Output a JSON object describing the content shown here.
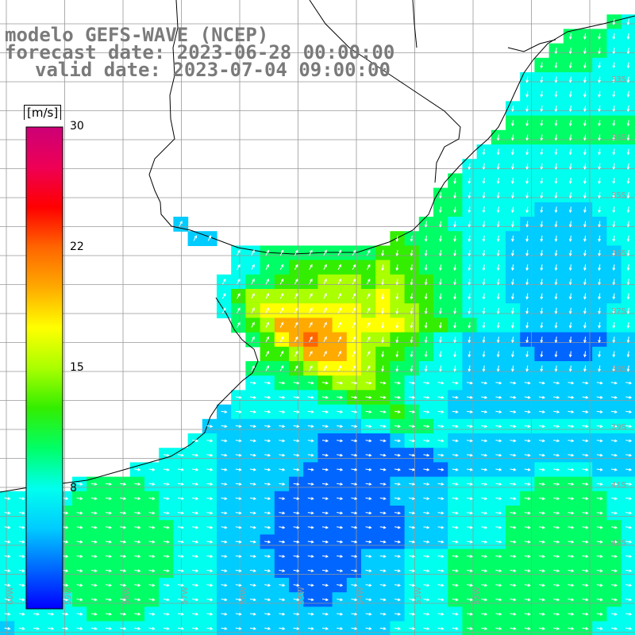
{
  "header": {
    "line1": "modelo GEFS-WAVE (NCEP)",
    "line2": "forecast date: 2023-06-28 00:00:00",
    "line3": "valid date: 2023-07-04 09:00:00"
  },
  "colorbar": {
    "unit_label": "[m/s]",
    "min": 0,
    "max": 30,
    "tick_labels": [
      "30",
      "22",
      "15",
      "8"
    ],
    "tick_values": [
      30,
      22,
      15,
      8
    ],
    "colors": [
      "#0000ff",
      "#0066ff",
      "#00ccff",
      "#00ffee",
      "#00ff66",
      "#33ee00",
      "#aaff00",
      "#ffff00",
      "#ffaa00",
      "#ff6600",
      "#ff0000",
      "#ee0055",
      "#cc0077"
    ]
  },
  "map": {
    "background_land": "#ffffff",
    "grid_color": "#999999",
    "lat_labels": [
      "33S",
      "34S",
      "35S",
      "36S",
      "37S",
      "38S",
      "39S",
      "41S",
      "42S"
    ],
    "lon_labels": [
      "60W",
      "59W",
      "58W",
      "57W",
      "56W",
      "55W",
      "54W",
      "53W",
      "52W"
    ],
    "field_description_colors": {
      "low": "#0033ff",
      "mid": "#00bbff",
      "high": "#00ffcc",
      "peak": "#ffff00"
    }
  }
}
